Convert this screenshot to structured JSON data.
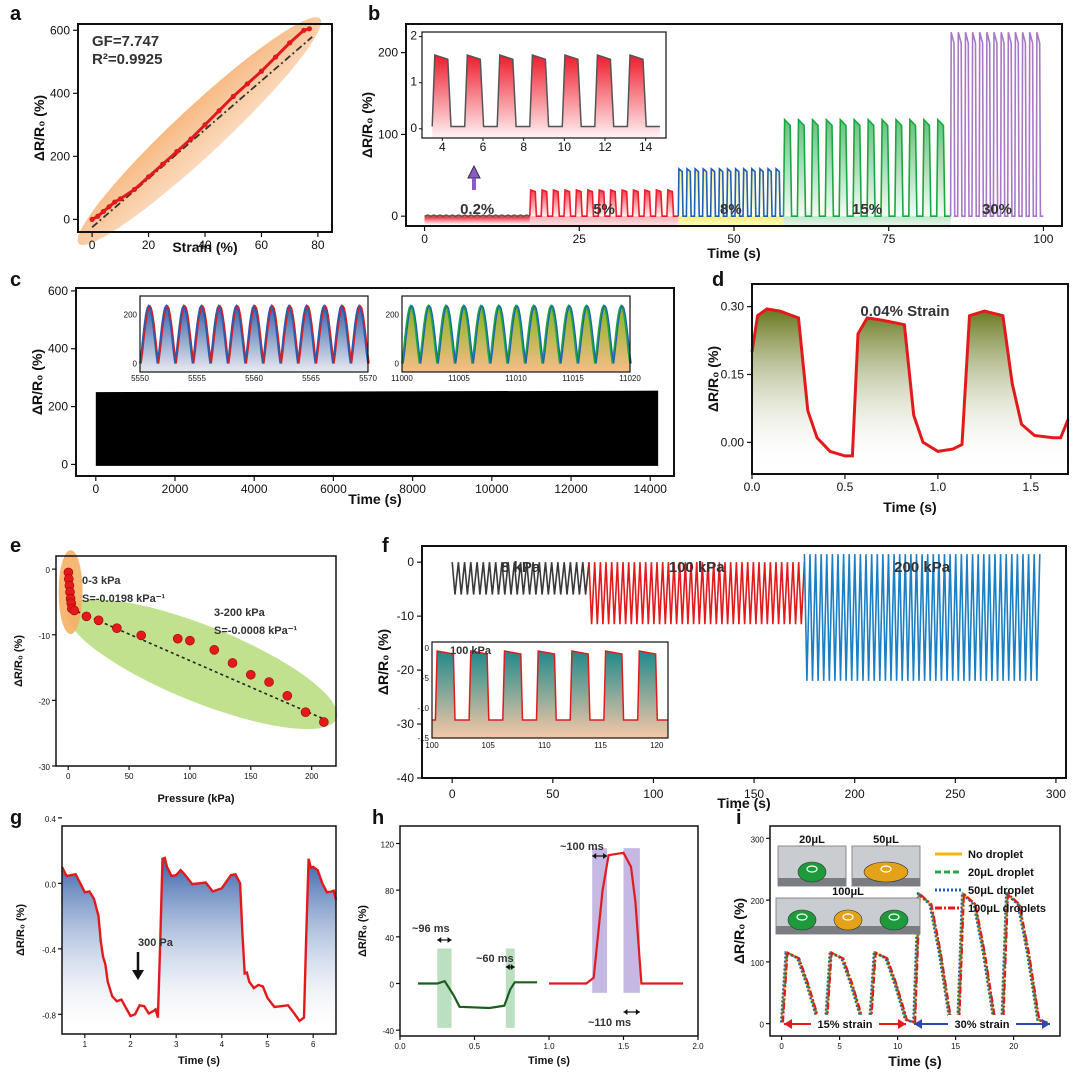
{
  "chart_data": [
    {
      "id": "a",
      "panel": "a",
      "type": "scatter",
      "xlabel": "Strain (%)",
      "ylabel": "ΔR/R₀ (%)",
      "xlim": [
        -5,
        85
      ],
      "ylim": [
        -40,
        620
      ],
      "xticks": [
        "0",
        "20",
        "40",
        "60",
        "80"
      ],
      "xtick_values": [
        0,
        20,
        40,
        60,
        80
      ],
      "yticks": [
        "0",
        "200",
        "400",
        "600"
      ],
      "ytick_values": [
        0,
        200,
        400,
        600
      ],
      "annotations": [
        "GF=7.747",
        "R²=0.9925"
      ],
      "series": [
        {
          "name": "measured",
          "color": "#e31a1c",
          "x": [
            0,
            2,
            4,
            6,
            8,
            10,
            15,
            20,
            25,
            30,
            35,
            40,
            45,
            50,
            55,
            60,
            65,
            70,
            75,
            77
          ],
          "y": [
            0,
            10,
            25,
            40,
            55,
            65,
            95,
            135,
            175,
            215,
            255,
            300,
            345,
            390,
            430,
            470,
            515,
            560,
            600,
            605
          ]
        }
      ],
      "fit": {
        "slope": 7.747,
        "intercept": -25
      }
    },
    {
      "id": "b",
      "panel": "b",
      "type": "line",
      "xlabel": "Time (s)",
      "ylabel": "ΔR/R₀ (%)",
      "xlim": [
        -3,
        103
      ],
      "ylim": [
        -12,
        235
      ],
      "xticks": [
        "0",
        "25",
        "50",
        "75",
        "100"
      ],
      "xtick_values": [
        0,
        25,
        50,
        75,
        100
      ],
      "yticks": [
        "0",
        "100",
        "200"
      ],
      "ytick_values": [
        0,
        100,
        200
      ],
      "segments": [
        {
          "label": "0.2%",
          "start": 0,
          "end": 17,
          "cycles": 0,
          "amplitude": 1.5,
          "color": "#555555",
          "fill": "#ef1c2c"
        },
        {
          "label": "5%",
          "start": 17,
          "end": 41,
          "cycles": 13,
          "amplitude": 32,
          "color": "#ef1c2c",
          "fill": "#ef1c2c"
        },
        {
          "label": "8%",
          "start": 41,
          "end": 58,
          "cycles": 13,
          "amplitude": 58,
          "color": "#1f5fb8",
          "fill": "#f5e83a"
        },
        {
          "label": "15%",
          "start": 58,
          "end": 85,
          "cycles": 12,
          "amplitude": 118,
          "color": "#1aa641",
          "fill": "#1aa641"
        },
        {
          "label": "30%",
          "start": 85,
          "end": 100,
          "cycles": 13,
          "amplitude": 225,
          "color": "#a778c8",
          "fill": "#ffffff"
        }
      ],
      "inset": {
        "xlim": [
          3,
          15
        ],
        "ylim": [
          -0.2,
          2.1
        ],
        "xticks": [
          "4",
          "6",
          "8",
          "10",
          "12",
          "14"
        ],
        "xtick_values": [
          4,
          6,
          8,
          10,
          12,
          14
        ],
        "yticks": [
          "0",
          "1",
          "2"
        ],
        "ytick_values": [
          0,
          1,
          2
        ],
        "cycles": 7,
        "start": 3.5,
        "period": 1.6,
        "amplitude": 1.6,
        "color": "#555555",
        "fill": "#ef1c2c"
      }
    },
    {
      "id": "c",
      "panel": "c",
      "type": "line",
      "xlabel": "Time (s)",
      "ylabel": "ΔR/R₀ (%)",
      "xlim": [
        -500,
        14600
      ],
      "ylim": [
        -40,
        610
      ],
      "xticks": [
        "0",
        "2000",
        "4000",
        "6000",
        "8000",
        "10000",
        "12000",
        "14000"
      ],
      "xtick_values": [
        0,
        2000,
        4000,
        6000,
        8000,
        10000,
        12000,
        14000
      ],
      "yticks": [
        "0",
        "200",
        "400",
        "600"
      ],
      "ytick_values": [
        0,
        200,
        400,
        600
      ],
      "band": {
        "start": 0,
        "end": 14200,
        "low": -5,
        "high_start": 250,
        "high_end": 255,
        "color": "#000000"
      },
      "insets": [
        {
          "xlim": [
            5550,
            5570
          ],
          "xticks": [
            "5550",
            "5555",
            "5560",
            "5565",
            "5570"
          ],
          "xtick_values": [
            5550,
            5555,
            5560,
            5565,
            5570
          ],
          "yticks": [
            "0",
            "200"
          ],
          "ytick_values": [
            0,
            200
          ],
          "cycles": 13,
          "line": "#e31a1c",
          "line2": "#1f5fb8",
          "fill": "#1f4fa0"
        },
        {
          "xlim": [
            11000,
            11020
          ],
          "xticks": [
            "11000",
            "11005",
            "11010",
            "11015",
            "11020"
          ],
          "xtick_values": [
            11000,
            11005,
            11010,
            11015,
            11020
          ],
          "yticks": [
            "0",
            "200"
          ],
          "ytick_values": [
            0,
            200
          ],
          "cycles": 13,
          "line": "#1f5fb8",
          "line2": "#1aa641",
          "fill": "#8bbf2a"
        }
      ]
    },
    {
      "id": "d",
      "panel": "d",
      "type": "line",
      "title": "0.04% Strain",
      "xlabel": "Time (s)",
      "ylabel": "ΔR/R₀ (%)",
      "xlim": [
        0,
        1.7
      ],
      "ylim": [
        -0.07,
        0.35
      ],
      "xticks": [
        "0.0",
        "0.5",
        "1.0",
        "1.5"
      ],
      "xtick_values": [
        0,
        0.5,
        1.0,
        1.5
      ],
      "yticks": [
        "0.00",
        "0.15",
        "0.30"
      ],
      "ytick_values": [
        0,
        0.15,
        0.3
      ],
      "series": [
        {
          "name": "response",
          "color": "#e31a1c",
          "fill": "#6b7a14",
          "x": [
            0.0,
            0.03,
            0.08,
            0.15,
            0.25,
            0.3,
            0.35,
            0.42,
            0.5,
            0.54,
            0.57,
            0.62,
            0.7,
            0.82,
            0.87,
            0.92,
            1.0,
            1.08,
            1.13,
            1.17,
            1.25,
            1.35,
            1.4,
            1.45,
            1.52,
            1.62,
            1.66,
            1.7
          ],
          "y": [
            0.2,
            0.28,
            0.295,
            0.29,
            0.275,
            0.07,
            0.01,
            -0.02,
            -0.03,
            -0.03,
            0.24,
            0.275,
            0.27,
            0.26,
            0.06,
            0.0,
            -0.02,
            -0.015,
            -0.005,
            0.28,
            0.29,
            0.28,
            0.13,
            0.04,
            0.015,
            0.01,
            0.01,
            0.05
          ]
        }
      ]
    },
    {
      "id": "e",
      "panel": "e",
      "type": "scatter",
      "xlabel": "Pressure (kPa)",
      "ylabel": "ΔR/R₀ (%)",
      "xlim": [
        -10,
        220
      ],
      "ylim": [
        -30,
        2
      ],
      "xticks": [
        "0",
        "50",
        "100",
        "150",
        "200"
      ],
      "xtick_values": [
        0,
        50,
        100,
        150,
        200
      ],
      "yticks": [
        "0",
        "-10",
        "-20",
        "-30"
      ],
      "ytick_values": [
        0,
        -10,
        -20,
        -30
      ],
      "annotations": [
        "0-3 kPa",
        "S=-0.0198 kPa⁻¹",
        "3-200 kPa",
        "S=-0.0008 kPa⁻¹"
      ],
      "series": [
        {
          "name": "measured",
          "color": "#e31a1c",
          "x": [
            0.2,
            0.5,
            1,
            1.5,
            2,
            2.5,
            3,
            5,
            15,
            25,
            40,
            60,
            90,
            100,
            120,
            135,
            150,
            165,
            180,
            195,
            210
          ],
          "y": [
            -0.5,
            -1.5,
            -2.5,
            -3.5,
            -4.5,
            -5.2,
            -6.0,
            -6.3,
            -7.2,
            -7.8,
            -9.0,
            -10.1,
            -10.6,
            -10.9,
            -12.3,
            -14.3,
            -16.1,
            -17.2,
            -19.3,
            -21.8,
            -23.3
          ]
        }
      ]
    },
    {
      "id": "f",
      "panel": "f",
      "type": "line",
      "xlabel": "Time (s)",
      "ylabel": "ΔR/R₀ (%)",
      "xlim": [
        -15,
        305
      ],
      "ylim": [
        -40,
        3
      ],
      "xticks": [
        "0",
        "50",
        "100",
        "150",
        "200",
        "250",
        "300"
      ],
      "xtick_values": [
        0,
        50,
        100,
        150,
        200,
        250,
        300
      ],
      "yticks": [
        "0",
        "-10",
        "-20",
        "-30",
        "-40"
      ],
      "ytick_values": [
        0,
        -10,
        -20,
        -30,
        -40
      ],
      "segments": [
        {
          "label": "8 kPa",
          "start": 0,
          "end": 68,
          "cycles": 22,
          "low": -6,
          "high": 0,
          "color": "#3a3a3a"
        },
        {
          "label": "100 kPa",
          "start": 68,
          "end": 175,
          "cycles": 38,
          "low": -11.5,
          "high": 0,
          "color": "#e31a1c"
        },
        {
          "label": "200 kPa",
          "start": 175,
          "end": 292,
          "cycles": 42,
          "low": -22,
          "high": 1.5,
          "color": "#1a7fc4"
        }
      ],
      "inset": {
        "label": "100 kPa",
        "xlim": [
          100,
          121
        ],
        "ylim": [
          -15,
          1
        ],
        "xticks": [
          "100",
          "105",
          "110",
          "115",
          "120"
        ],
        "xtick_values": [
          100,
          105,
          110,
          115,
          120
        ],
        "yticks": [
          "0",
          "-5",
          "-10",
          "-15"
        ],
        "ytick_values": [
          0,
          -5,
          -10,
          -15
        ],
        "cycles": 7,
        "low": -12,
        "high": -0.5,
        "color": "#e31a1c",
        "fill": "#1f8a8a"
      }
    },
    {
      "id": "g",
      "panel": "g",
      "type": "line",
      "xlabel": "Time (s)",
      "ylabel": "ΔR/R₀ (%)",
      "xlim": [
        0.5,
        6.5
      ],
      "ylim": [
        -0.92,
        0.35
      ],
      "xticks": [
        "1",
        "2",
        "3",
        "4",
        "5",
        "6"
      ],
      "xtick_values": [
        1,
        2,
        3,
        4,
        5,
        6
      ],
      "yticks": [
        "0.4",
        "0.0",
        "-0.4",
        "-0.8"
      ],
      "ytick_values": [
        0.4,
        0,
        -0.4,
        -0.8
      ],
      "annotation": "300 Pa",
      "series": [
        {
          "name": "response",
          "color": "#e31a1c",
          "fill": "#1f4fa0",
          "x": [
            0.5,
            0.7,
            0.9,
            1.1,
            1.3,
            1.4,
            1.5,
            1.7,
            1.9,
            2.1,
            2.3,
            2.5,
            2.6,
            2.7,
            2.8,
            3.0,
            3.2,
            3.5,
            3.8,
            4.2,
            4.4,
            4.5,
            4.6,
            4.8,
            5.0,
            5.3,
            5.6,
            5.8,
            5.9,
            6.0,
            6.2,
            6.4,
            6.5
          ],
          "y": [
            0.1,
            0.05,
            0.0,
            -0.05,
            -0.2,
            -0.45,
            -0.6,
            -0.72,
            -0.76,
            -0.8,
            -0.75,
            -0.78,
            -0.82,
            0.15,
            0.1,
            0.05,
            0.05,
            0.0,
            -0.05,
            0.05,
            0.0,
            -0.55,
            -0.6,
            -0.62,
            -0.7,
            -0.75,
            -0.8,
            -0.82,
            0.15,
            0.1,
            0.0,
            -0.05,
            -0.1
          ]
        }
      ]
    },
    {
      "id": "h",
      "panel": "h",
      "type": "line",
      "xlabel": "Time (s)",
      "ylabel": "ΔR/R₀ (%)",
      "xlim": [
        0.0,
        2.0
      ],
      "ylim": [
        -45,
        135
      ],
      "xticks": [
        "0.0",
        "0.5",
        "1.0",
        "1.5",
        "2.0"
      ],
      "xtick_values": [
        0,
        0.5,
        1.0,
        1.5,
        2.0
      ],
      "yticks": [
        "120",
        "80",
        "40",
        "0",
        "-40"
      ],
      "ytick_values": [
        120,
        80,
        40,
        0,
        -40
      ],
      "annotations": [
        "~96 ms",
        "~60 ms",
        "~100 ms",
        "~110 ms"
      ],
      "series": [
        {
          "name": "pressure",
          "color": "#1b5e20",
          "x": [
            0.12,
            0.25,
            0.3,
            0.36,
            0.4,
            0.6,
            0.7,
            0.74,
            0.77,
            0.85,
            0.92
          ],
          "y": [
            0,
            0,
            2,
            -10,
            -20,
            -21,
            -19,
            -5,
            1,
            1,
            1
          ]
        },
        {
          "name": "strain",
          "color": "#e31a1c",
          "x": [
            1.0,
            1.25,
            1.3,
            1.36,
            1.4,
            1.5,
            1.55,
            1.58,
            1.62,
            1.7,
            1.9
          ],
          "y": [
            0,
            0,
            5,
            80,
            110,
            112,
            100,
            70,
            0,
            0,
            0
          ]
        }
      ]
    },
    {
      "id": "i",
      "panel": "i",
      "type": "line",
      "xlabel": "Time (s)",
      "ylabel": "ΔR/R₀ (%)",
      "xlim": [
        -1,
        24
      ],
      "ylim": [
        -20,
        320
      ],
      "xticks": [
        "0",
        "5",
        "10",
        "15",
        "20"
      ],
      "xtick_values": [
        0,
        5,
        10,
        15,
        20
      ],
      "yticks": [
        "0",
        "100",
        "200",
        "300"
      ],
      "ytick_values": [
        0,
        100,
        200,
        300
      ],
      "regions": [
        "15% strain",
        "30% strain"
      ],
      "droplet_labels": [
        "20μL",
        "50μL",
        "100μL"
      ],
      "series": [
        {
          "name": "No droplet",
          "color": "#f5b800",
          "dash": ""
        },
        {
          "name": "20μL droplet",
          "color": "#2aa34a",
          "dash": "6,3"
        },
        {
          "name": "50μL droplet",
          "color": "#1f5fb8",
          "dash": "2,2"
        },
        {
          "name": "100μL droplets",
          "color": "#e31a1c",
          "dash": "7,2,2,2"
        }
      ],
      "cycles": [
        {
          "start": 0,
          "amp": 115
        },
        {
          "start": 3.8,
          "amp": 115
        },
        {
          "start": 7.6,
          "amp": 115
        },
        {
          "start": 11.4,
          "amp": 210
        },
        {
          "start": 15.2,
          "amp": 210
        },
        {
          "start": 19.0,
          "amp": 210
        }
      ]
    }
  ]
}
